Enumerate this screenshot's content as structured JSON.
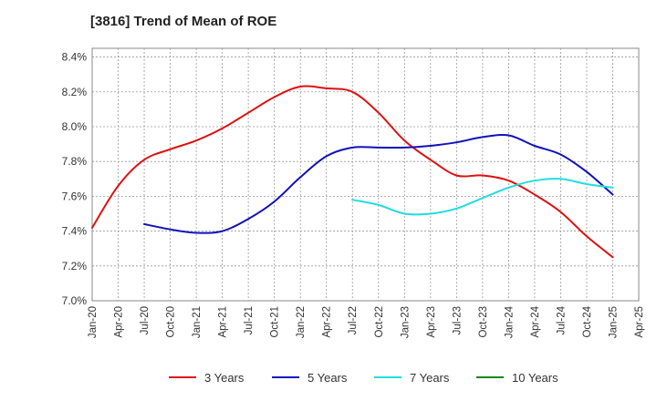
{
  "chart_data": {
    "type": "line",
    "title": "[3816]  Trend of Mean of ROE",
    "xlabel": "",
    "ylabel": "",
    "x_ticks": [
      "Jan-20",
      "Apr-20",
      "Jul-20",
      "Oct-20",
      "Jan-21",
      "Apr-21",
      "Jul-21",
      "Oct-21",
      "Jan-22",
      "Apr-22",
      "Jul-22",
      "Oct-22",
      "Jan-23",
      "Apr-23",
      "Jul-23",
      "Oct-23",
      "Jan-24",
      "Apr-24",
      "Jul-24",
      "Oct-24",
      "Jan-25",
      "Apr-25"
    ],
    "y_ticks": [
      "7.0%",
      "7.2%",
      "7.4%",
      "7.6%",
      "7.8%",
      "8.0%",
      "8.2%",
      "8.4%"
    ],
    "ylim": [
      7.0,
      8.45
    ],
    "grid": true,
    "legend_position": "bottom",
    "series": [
      {
        "name": "3 Years",
        "color": "#dd1111",
        "points": [
          [
            "Jan-20",
            7.42
          ],
          [
            "Apr-20",
            7.66
          ],
          [
            "Jul-20",
            7.81
          ],
          [
            "Oct-20",
            7.87
          ],
          [
            "Jan-21",
            7.92
          ],
          [
            "Apr-21",
            7.99
          ],
          [
            "Jul-21",
            8.08
          ],
          [
            "Oct-21",
            8.17
          ],
          [
            "Jan-22",
            8.23
          ],
          [
            "Apr-22",
            8.22
          ],
          [
            "Jul-22",
            8.2
          ],
          [
            "Oct-22",
            8.08
          ],
          [
            "Jan-23",
            7.92
          ],
          [
            "Apr-23",
            7.81
          ],
          [
            "Jul-23",
            7.72
          ],
          [
            "Oct-23",
            7.72
          ],
          [
            "Jan-24",
            7.69
          ],
          [
            "Apr-24",
            7.61
          ],
          [
            "Jul-24",
            7.51
          ],
          [
            "Oct-24",
            7.37
          ],
          [
            "Jan-25",
            7.25
          ]
        ]
      },
      {
        "name": "5 Years",
        "color": "#1111bb",
        "points": [
          [
            "Jul-20",
            7.44
          ],
          [
            "Oct-20",
            7.41
          ],
          [
            "Jan-21",
            7.39
          ],
          [
            "Apr-21",
            7.4
          ],
          [
            "Jul-21",
            7.47
          ],
          [
            "Oct-21",
            7.57
          ],
          [
            "Jan-22",
            7.71
          ],
          [
            "Apr-22",
            7.83
          ],
          [
            "Jul-22",
            7.88
          ],
          [
            "Oct-22",
            7.88
          ],
          [
            "Jan-23",
            7.88
          ],
          [
            "Apr-23",
            7.89
          ],
          [
            "Jul-23",
            7.91
          ],
          [
            "Oct-23",
            7.94
          ],
          [
            "Jan-24",
            7.95
          ],
          [
            "Apr-24",
            7.89
          ],
          [
            "Jul-24",
            7.84
          ],
          [
            "Oct-24",
            7.74
          ],
          [
            "Jan-25",
            7.61
          ]
        ]
      },
      {
        "name": "7 Years",
        "color": "#22dddd",
        "points": [
          [
            "Jul-22",
            7.58
          ],
          [
            "Oct-22",
            7.55
          ],
          [
            "Jan-23",
            7.5
          ],
          [
            "Apr-23",
            7.5
          ],
          [
            "Jul-23",
            7.53
          ],
          [
            "Oct-23",
            7.59
          ],
          [
            "Jan-24",
            7.65
          ],
          [
            "Apr-24",
            7.69
          ],
          [
            "Jul-24",
            7.7
          ],
          [
            "Oct-24",
            7.67
          ],
          [
            "Jan-25",
            7.65
          ]
        ]
      },
      {
        "name": "10 Years",
        "color": "#118811",
        "points": []
      }
    ]
  }
}
